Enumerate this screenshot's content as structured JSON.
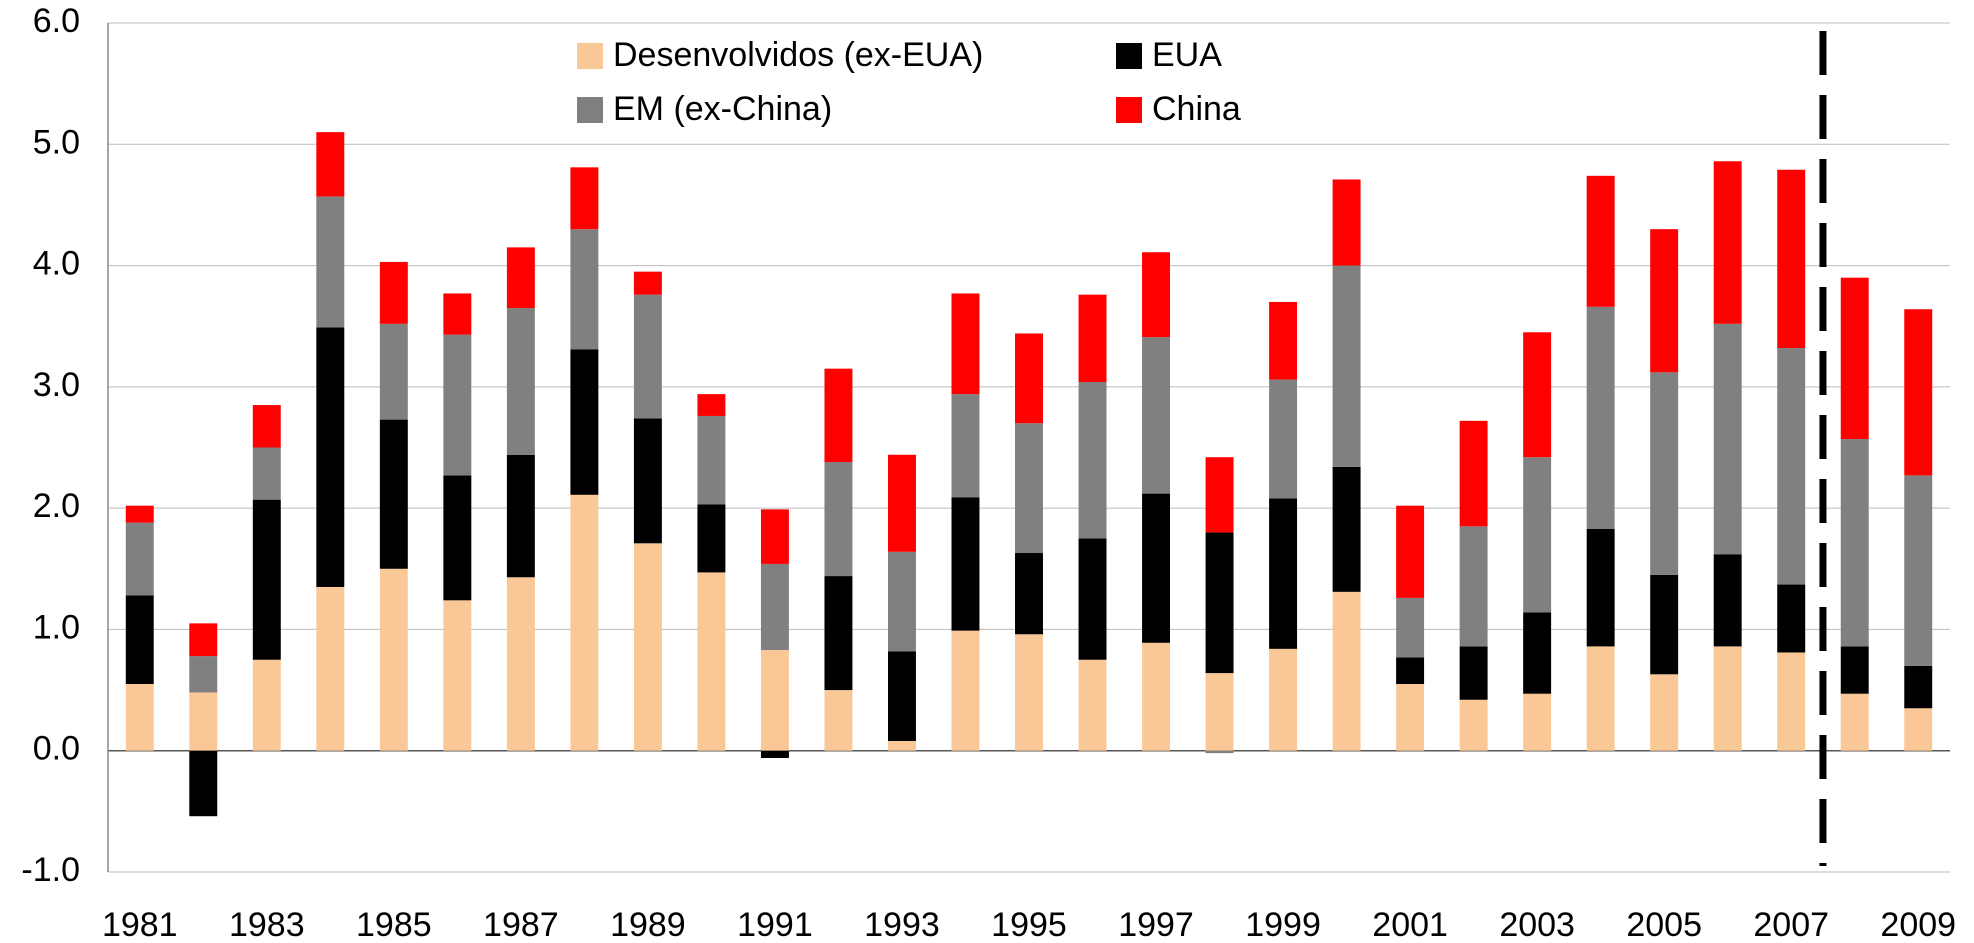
{
  "chart_data": {
    "type": "stacked_bar",
    "categories": [
      "1981",
      null,
      "1983",
      null,
      "1985",
      null,
      "1987",
      null,
      "1989",
      null,
      "1991",
      null,
      "1993",
      null,
      "1995",
      null,
      "1997",
      null,
      "1999",
      null,
      "2001",
      null,
      "2003",
      null,
      "2005",
      null,
      "2007",
      null,
      "2009"
    ],
    "series": [
      {
        "name": "Desenvolvidos (ex-EUA)",
        "color": "#fac896",
        "values": [
          0.55,
          0.48,
          0.75,
          1.35,
          1.5,
          1.24,
          1.43,
          2.11,
          1.71,
          1.47,
          0.83,
          0.5,
          0.08,
          0.99,
          0.96,
          0.75,
          0.89,
          0.64,
          0.84,
          1.31,
          0.55,
          0.42,
          0.47,
          0.86,
          0.63,
          0.86,
          0.81,
          0.47,
          0.35
        ]
      },
      {
        "name": "EUA",
        "color": "#000000",
        "values": [
          0.73,
          -0.54,
          1.32,
          2.14,
          1.23,
          1.03,
          1.01,
          1.2,
          1.03,
          0.56,
          -0.06,
          0.94,
          0.74,
          1.1,
          0.67,
          1.0,
          1.23,
          1.16,
          1.24,
          1.03,
          0.22,
          0.44,
          0.67,
          0.97,
          0.82,
          0.76,
          0.56,
          0.39,
          0.35
        ]
      },
      {
        "name": "EM (ex-China)",
        "color": "#808080",
        "values": [
          0.6,
          0.3,
          0.43,
          1.08,
          0.79,
          1.16,
          1.21,
          0.99,
          1.02,
          0.73,
          0.71,
          0.94,
          0.82,
          0.85,
          1.07,
          1.29,
          1.29,
          -0.02,
          0.98,
          1.66,
          0.49,
          0.99,
          1.28,
          1.83,
          1.67,
          1.9,
          1.95,
          1.71,
          1.57
        ]
      },
      {
        "name": "China",
        "color": "#ff0000",
        "values": [
          0.14,
          0.27,
          0.35,
          0.53,
          0.51,
          0.34,
          0.5,
          0.51,
          0.19,
          0.18,
          0.45,
          0.77,
          0.8,
          0.83,
          0.74,
          0.72,
          0.7,
          0.62,
          0.64,
          0.71,
          0.76,
          0.87,
          1.03,
          1.08,
          1.18,
          1.34,
          1.47,
          1.33,
          1.37
        ]
      }
    ],
    "ylim": [
      -1,
      6
    ],
    "yticks": [
      {
        "value": -1,
        "label": "-1.0"
      },
      {
        "value": 0,
        "label": "0.0"
      },
      {
        "value": 1,
        "label": "1.0"
      },
      {
        "value": 2,
        "label": "2.0"
      },
      {
        "value": 3,
        "label": "3.0"
      },
      {
        "value": 4,
        "label": "4.0"
      },
      {
        "value": 5,
        "label": "5.0"
      },
      {
        "value": 6,
        "label": "6.0"
      }
    ],
    "grid": true
  }
}
